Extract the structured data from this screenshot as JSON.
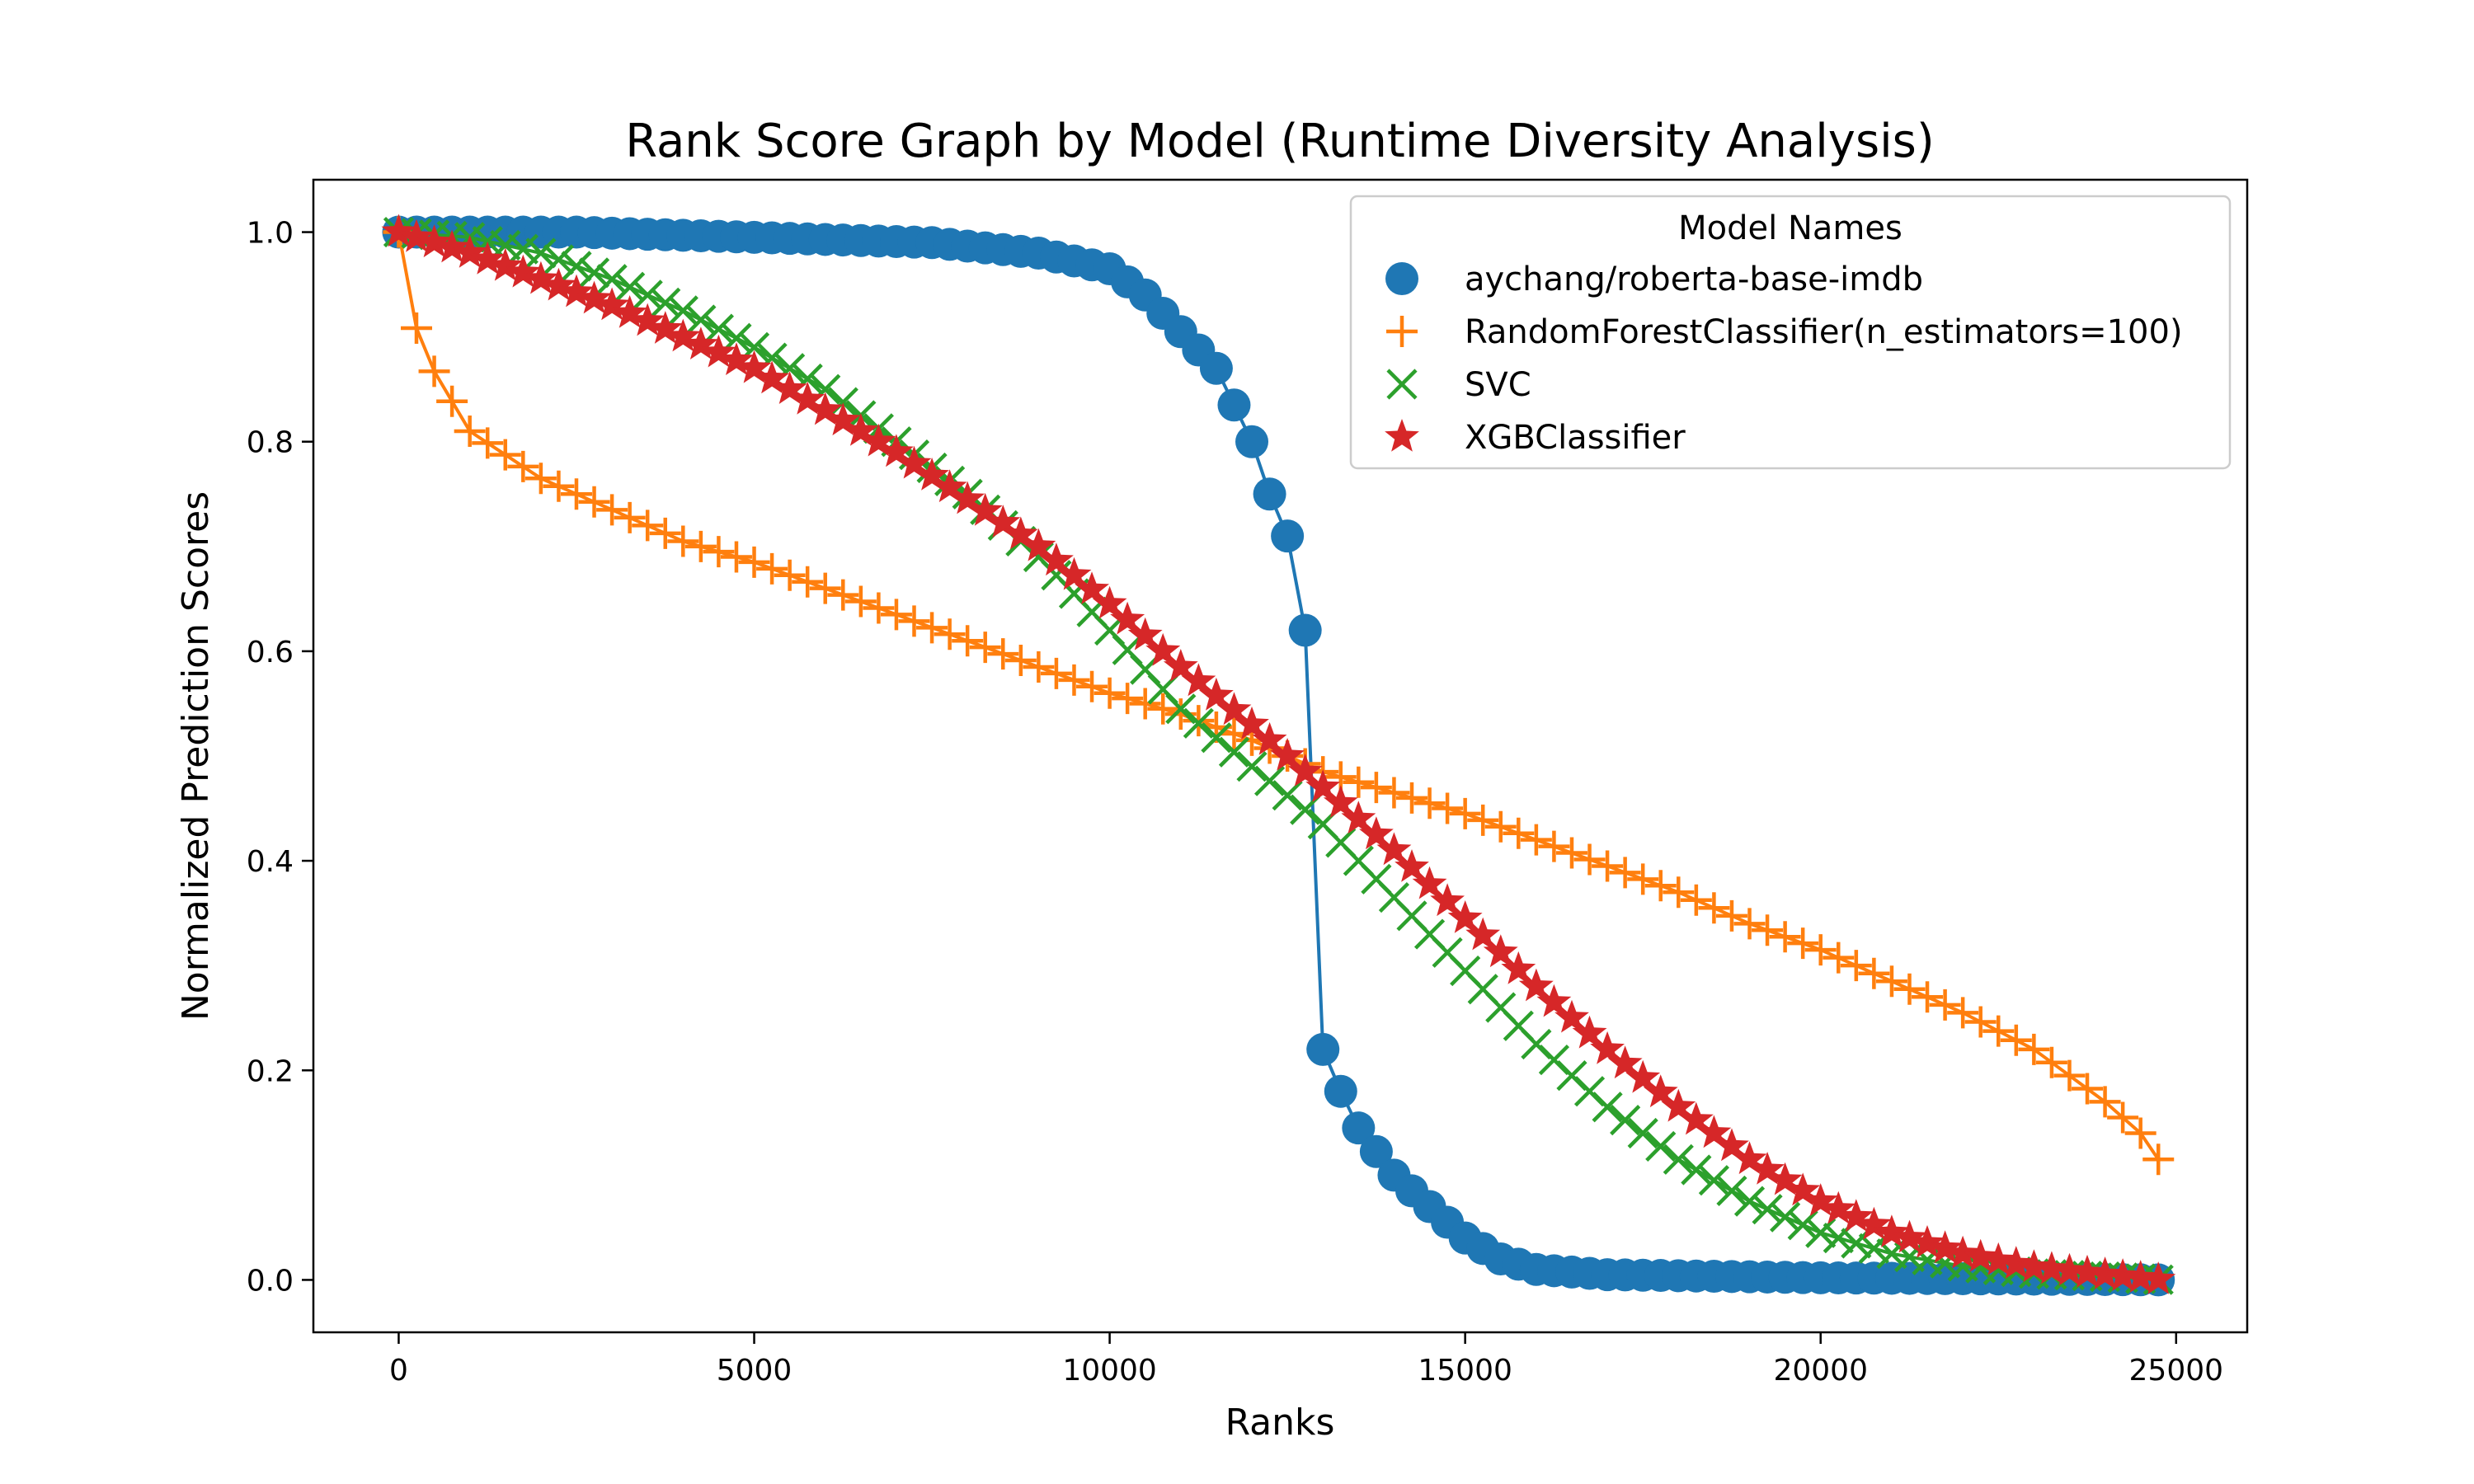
{
  "chart_data": {
    "type": "line",
    "title": "Rank Score Graph by Model (Runtime Diversity Analysis)",
    "xlabel": "Ranks",
    "ylabel": "Normalized Prediction Scores",
    "xlim": [
      -1200,
      26000
    ],
    "ylim": [
      -0.05,
      1.05
    ],
    "xticks": [
      0,
      5000,
      10000,
      15000,
      20000,
      25000
    ],
    "xtick_labels": [
      "0",
      "5000",
      "10000",
      "15000",
      "20000",
      "25000"
    ],
    "yticks": [
      0.0,
      0.2,
      0.4,
      0.6,
      0.8,
      1.0
    ],
    "ytick_labels": [
      "0.0",
      "0.2",
      "0.4",
      "0.6",
      "0.8",
      "1.0"
    ],
    "grid": false,
    "legend": {
      "title": "Model Names",
      "position": "top-right"
    },
    "series": [
      {
        "name": "aychang/roberta-base-imdb",
        "color": "#1f77b4",
        "marker": "circle",
        "x": [
          0,
          2500,
          5000,
          7500,
          9000,
          10000,
          10500,
          11000,
          11500,
          12000,
          12250,
          12500,
          12750,
          13000,
          13250,
          13500,
          14000,
          14500,
          15000,
          15500,
          16000,
          17000,
          20000,
          24800
        ],
        "y": [
          1.0,
          1.0,
          0.995,
          0.99,
          0.98,
          0.965,
          0.94,
          0.905,
          0.87,
          0.8,
          0.75,
          0.71,
          0.62,
          0.22,
          0.18,
          0.145,
          0.1,
          0.07,
          0.04,
          0.02,
          0.01,
          0.005,
          0.002,
          0.0
        ]
      },
      {
        "name": "RandomForestClassifier(n_estimators=100)",
        "color": "#ff7f0e",
        "marker": "plus",
        "x": [
          0,
          300,
          1000,
          2000,
          3000,
          4000,
          5000,
          6000,
          7000,
          8000,
          9000,
          10000,
          11000,
          12000,
          13000,
          14000,
          15000,
          16000,
          17000,
          18000,
          19000,
          20000,
          21000,
          22000,
          23000,
          24000,
          24500,
          24800
        ],
        "y": [
          1.0,
          0.89,
          0.81,
          0.765,
          0.735,
          0.705,
          0.685,
          0.66,
          0.635,
          0.61,
          0.585,
          0.56,
          0.54,
          0.515,
          0.485,
          0.465,
          0.445,
          0.42,
          0.395,
          0.37,
          0.34,
          0.315,
          0.285,
          0.255,
          0.22,
          0.17,
          0.14,
          0.11
        ]
      },
      {
        "name": "SVC",
        "color": "#2ca02c",
        "marker": "x",
        "x": [
          0,
          1000,
          2000,
          3000,
          4000,
          5000,
          6000,
          7000,
          8000,
          9000,
          10000,
          11000,
          12000,
          13000,
          14000,
          15000,
          16000,
          17000,
          18000,
          19000,
          20000,
          21000,
          22000,
          23000,
          24000,
          24800
        ],
        "y": [
          1.0,
          0.995,
          0.98,
          0.955,
          0.925,
          0.89,
          0.85,
          0.8,
          0.75,
          0.69,
          0.62,
          0.545,
          0.49,
          0.435,
          0.365,
          0.295,
          0.225,
          0.165,
          0.115,
          0.075,
          0.045,
          0.025,
          0.013,
          0.006,
          0.003,
          0.0
        ]
      },
      {
        "name": "XGBClassifier",
        "color": "#d62728",
        "marker": "star",
        "x": [
          0,
          1000,
          2000,
          3000,
          4000,
          5000,
          6000,
          7000,
          8000,
          9000,
          10000,
          11000,
          12000,
          13000,
          14000,
          15000,
          16000,
          17000,
          18000,
          19000,
          20000,
          21000,
          22000,
          23000,
          24000,
          24800
        ],
        "y": [
          1.0,
          0.98,
          0.955,
          0.93,
          0.9,
          0.87,
          0.83,
          0.79,
          0.745,
          0.7,
          0.645,
          0.585,
          0.53,
          0.47,
          0.41,
          0.345,
          0.28,
          0.22,
          0.165,
          0.115,
          0.075,
          0.045,
          0.025,
          0.012,
          0.005,
          0.0
        ]
      }
    ]
  }
}
